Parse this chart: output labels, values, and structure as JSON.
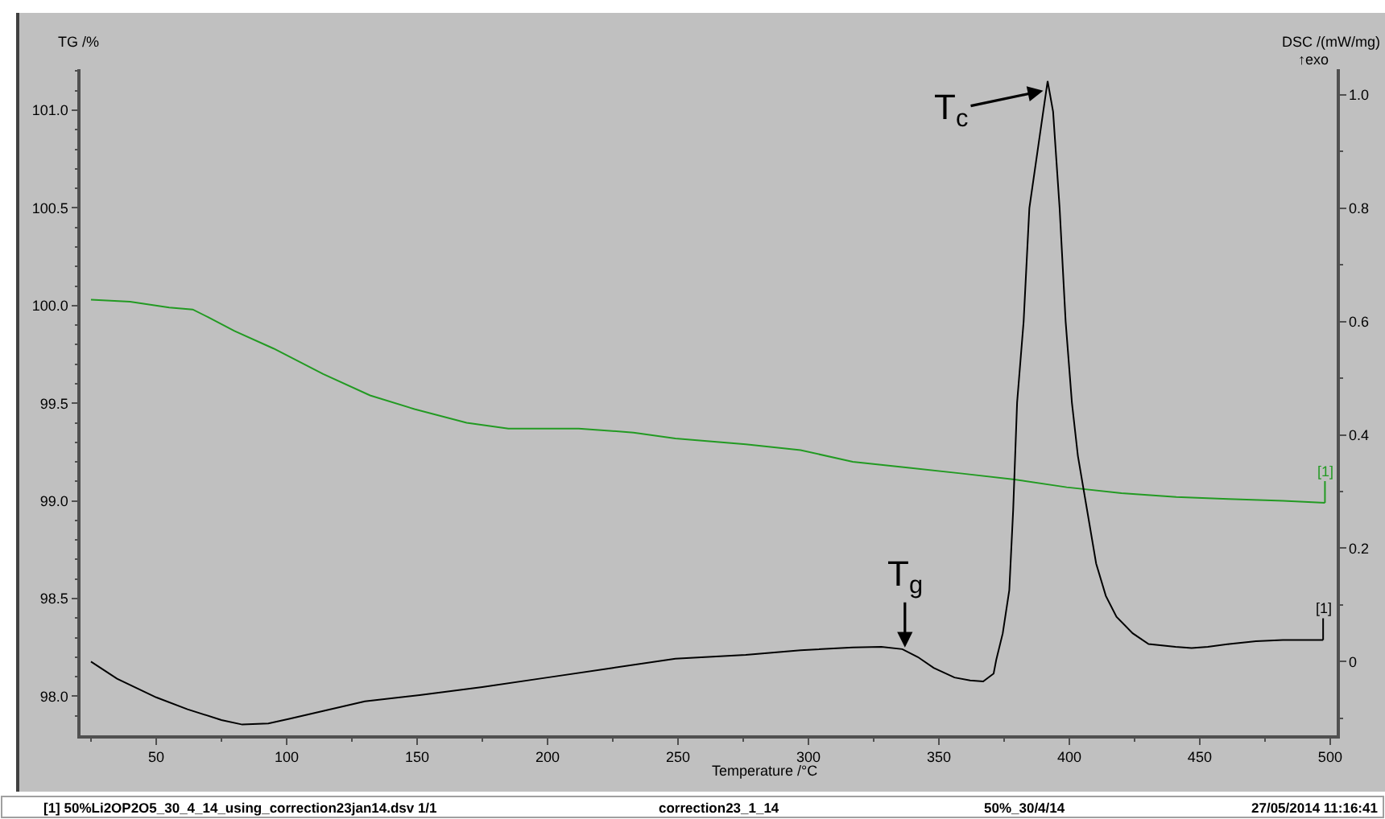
{
  "chart_data": {
    "type": "line",
    "xlabel": "Temperature /°C",
    "ylabel": "TG /%",
    "y2label": "DSC /(mW/mg)",
    "xlim": [
      21,
      502.5
    ],
    "xticks": [
      {
        "value": 25,
        "label": null
      },
      50,
      {
        "value": 75,
        "label": null
      },
      100,
      {
        "value": 125,
        "label": null
      },
      150,
      {
        "value": 175,
        "label": null
      },
      200,
      {
        "value": 225,
        "label": null
      },
      250,
      {
        "value": 275,
        "label": null
      },
      300,
      {
        "value": 325,
        "label": null
      },
      350,
      {
        "value": 375,
        "label": null
      },
      400,
      {
        "value": 425,
        "label": null
      },
      450,
      {
        "value": 475,
        "label": null
      },
      500
    ],
    "ylim": [
      97.8,
      101.21
    ],
    "yticks": [
      {
        "value": 97.9,
        "label": null
      },
      {
        "value": 98,
        "label": "98.0"
      },
      {
        "value": 98.1,
        "label": null
      },
      {
        "value": 98.2,
        "label": null
      },
      {
        "value": 98.3,
        "label": null
      },
      {
        "value": 98.4,
        "label": null
      },
      {
        "value": 98.5,
        "label": "98.5"
      },
      {
        "value": 98.6,
        "label": null
      },
      {
        "value": 98.7,
        "label": null
      },
      {
        "value": 98.8,
        "label": null
      },
      {
        "value": 98.9,
        "label": null
      },
      {
        "value": 99,
        "label": "99.0"
      },
      {
        "value": 99.1,
        "label": null
      },
      {
        "value": 99.2,
        "label": null
      },
      {
        "value": 99.3,
        "label": null
      },
      {
        "value": 99.4,
        "label": null
      },
      {
        "value": 99.5,
        "label": "99.5"
      },
      {
        "value": 99.6,
        "label": null
      },
      {
        "value": 99.7,
        "label": null
      },
      {
        "value": 99.8,
        "label": null
      },
      {
        "value": 99.9,
        "label": null
      },
      {
        "value": 100,
        "label": "100.0"
      },
      {
        "value": 100.1,
        "label": null
      },
      {
        "value": 100.2,
        "label": null
      },
      {
        "value": 100.3,
        "label": null
      },
      {
        "value": 100.4,
        "label": null
      },
      {
        "value": 100.5,
        "label": "100.5"
      },
      {
        "value": 100.6,
        "label": null
      },
      {
        "value": 100.7,
        "label": null
      },
      {
        "value": 100.8,
        "label": null
      },
      {
        "value": 100.9,
        "label": null
      },
      {
        "value": 101,
        "label": "101.0"
      },
      {
        "value": 101.1,
        "label": null
      },
      {
        "value": 101.2,
        "label": null
      }
    ],
    "y2lim": [
      -0.13,
      1.045
    ],
    "y2ticks": [
      {
        "value": -0.1,
        "label": null
      },
      0,
      {
        "value": 0.1,
        "label": null
      },
      0.2,
      {
        "value": 0.3,
        "label": null
      },
      0.4,
      {
        "value": 0.5,
        "label": null
      },
      0.6,
      {
        "value": 0.7,
        "label": null
      },
      0.8,
      {
        "value": 0.9,
        "label": null
      },
      {
        "value": 1,
        "label": "1.0"
      }
    ],
    "series": [
      {
        "name": "[1]",
        "color": "#229a22",
        "x": [
          25,
          40,
          55,
          64,
          70,
          80,
          95,
          114,
          132,
          149,
          169,
          185,
          212,
          233,
          249,
          276,
          297,
          317,
          338,
          359,
          379,
          399,
          420,
          441,
          461,
          482,
          498
        ],
        "values": [
          100.03,
          100.02,
          99.99,
          99.98,
          99.94,
          99.87,
          99.78,
          99.65,
          99.54,
          99.47,
          99.4,
          99.37,
          99.37,
          99.35,
          99.32,
          99.29,
          99.26,
          99.2,
          99.17,
          99.14,
          99.11,
          99.07,
          99.04,
          99.02,
          99.01,
          99.0,
          98.99
        ]
      },
      {
        "name": "[1]",
        "color": "#000000",
        "axis": "y2",
        "x": [
          25,
          35,
          50,
          62,
          75,
          83,
          93,
          101,
          114,
          130,
          151,
          175,
          200,
          225,
          249,
          276,
          297,
          317,
          328,
          336,
          342,
          348,
          356,
          362,
          367,
          371,
          372,
          374.5,
          377,
          378.5,
          380,
          382.5,
          384.7,
          390,
          391.7,
          393.8,
          396.3,
          398.6,
          401,
          403.3,
          406.8,
          410.3,
          414,
          418.1,
          424.3,
          430.4,
          440.7,
          446.9,
          453.1,
          461.3,
          471.6,
          481.9,
          497.3
        ],
        "values": [
          0.0,
          -0.03,
          -0.063,
          -0.084,
          -0.103,
          -0.111,
          -0.109,
          -0.101,
          -0.087,
          -0.07,
          -0.059,
          -0.045,
          -0.028,
          -0.011,
          0.005,
          0.012,
          0.02,
          0.025,
          0.026,
          0.022,
          0.008,
          -0.011,
          -0.028,
          -0.033,
          -0.035,
          -0.021,
          0.003,
          0.05,
          0.126,
          0.268,
          0.457,
          0.6,
          0.8,
          0.97,
          1.024,
          0.97,
          0.8,
          0.6,
          0.457,
          0.363,
          0.268,
          0.173,
          0.116,
          0.079,
          0.05,
          0.031,
          0.026,
          0.024,
          0.026,
          0.031,
          0.036,
          0.038,
          0.038
        ]
      }
    ],
    "annotations": [
      "↑exo",
      "[1] 50%Li2OP2O5_30_4_14_using_correction23jan14.dsv 1/1",
      "correction23_1_14",
      "50%_30/4/14",
      "27/05/2014 11:16:41",
      {
        "text": "T$_{c}$",
        "x": 390,
        "y": 101.1
      },
      {
        "text": "T$_{g}$",
        "x": 337,
        "y": 98.25
      }
    ]
  }
}
